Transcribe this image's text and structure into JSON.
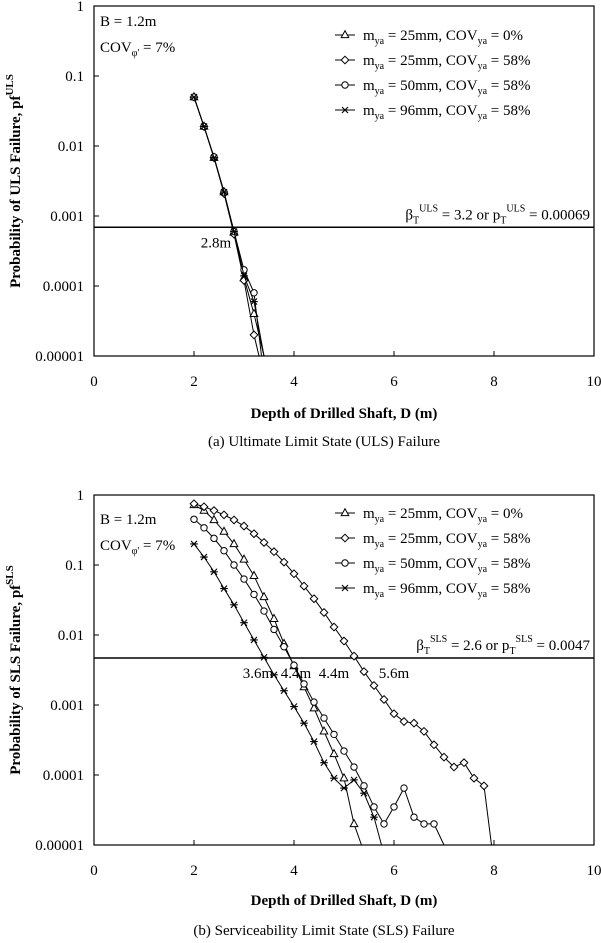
{
  "chart_data": [
    {
      "type": "line",
      "panel_label": "(a) Ultimate Limit State (ULS) Failure",
      "xlabel": "Depth of Drilled Shaft, D (m)",
      "ylabel": "Probability of ULS Failure, pf",
      "ylabel_sup": "ULS",
      "xlim": [
        0,
        10
      ],
      "ylim": [
        1e-05,
        1
      ],
      "yscale": "log",
      "x_ticks": [
        "0",
        "2",
        "4",
        "6",
        "8",
        "10"
      ],
      "y_ticks": [
        "1",
        "0.1",
        "0.01",
        "0.001",
        "0.0001",
        "0.00001"
      ],
      "annotations": {
        "b_text": "B = 1.2m",
        "cov_phi_main": "COV",
        "cov_phi_sub": "φ'",
        "cov_phi_value": " = 7%",
        "target_beta": "β",
        "target_beta_sub": "T",
        "target_beta_sup": "ULS",
        "target_mid": " = 3.2 or p",
        "target_p_sub": "T",
        "target_p_sup": "ULS",
        "target_end": " = 0.00069",
        "threshold_value": 0.00069,
        "depth_labels": [
          {
            "text": "2.8m",
            "depth": 2.8
          }
        ]
      },
      "series": [
        {
          "name_parts": [
            "m",
            "ya",
            " = 25mm, COV",
            "ya",
            " = 0%"
          ],
          "marker": "triangle",
          "x": [
            2.0,
            2.2,
            2.4,
            2.6,
            2.8,
            3.0,
            3.2,
            3.4
          ],
          "y": [
            0.05,
            0.019,
            0.0068,
            0.0022,
            0.00058,
            0.00013,
            4e-05,
            1e-05
          ]
        },
        {
          "name_parts": [
            "m",
            "ya",
            " = 25mm, COV",
            "ya",
            " = 58%"
          ],
          "marker": "diamond",
          "x": [
            2.0,
            2.2,
            2.4,
            2.6,
            2.8,
            3.0,
            3.2,
            3.3
          ],
          "y": [
            0.05,
            0.019,
            0.0068,
            0.0021,
            0.00055,
            0.00012,
            2e-05,
            1e-05
          ]
        },
        {
          "name_parts": [
            "m",
            "ya",
            " = 50mm, COV",
            "ya",
            " = 58%"
          ],
          "marker": "circle",
          "x": [
            2.0,
            2.2,
            2.4,
            2.6,
            2.8,
            3.0,
            3.2,
            3.35
          ],
          "y": [
            0.05,
            0.019,
            0.007,
            0.0022,
            0.0006,
            0.00017,
            8e-05,
            1e-05
          ]
        },
        {
          "name_parts": [
            "m",
            "ya",
            " = 96mm, COV",
            "ya",
            " = 58%"
          ],
          "marker": "star",
          "x": [
            2.0,
            2.2,
            2.4,
            2.6,
            2.8,
            3.0,
            3.2,
            3.4
          ],
          "y": [
            0.05,
            0.019,
            0.0068,
            0.0022,
            0.0006,
            0.00014,
            6e-05,
            1e-05
          ]
        }
      ]
    },
    {
      "type": "line",
      "panel_label": "(b) Serviceability Limit State (SLS) Failure",
      "xlabel": "Depth of Drilled Shaft, D (m)",
      "ylabel": "Probability of SLS Failure, pf",
      "ylabel_sup": "SLS",
      "xlim": [
        0,
        10
      ],
      "ylim": [
        1e-05,
        1
      ],
      "yscale": "log",
      "x_ticks": [
        "0",
        "2",
        "4",
        "6",
        "8",
        "10"
      ],
      "y_ticks": [
        "1",
        "0.1",
        "0.01",
        "0.001",
        "0.0001",
        "0.00001"
      ],
      "annotations": {
        "b_text": "B = 1.2m",
        "cov_phi_main": "COV",
        "cov_phi_sub": "φ'",
        "cov_phi_value": " = 7%",
        "target_beta": "β",
        "target_beta_sub": "T",
        "target_beta_sup": "SLS",
        "target_mid": " = 2.6 or p",
        "target_p_sub": "T",
        "target_p_sup": "SLS",
        "target_end": " = 0.0047",
        "threshold_value": 0.0047,
        "depth_labels": [
          {
            "text": "3.6m",
            "depth": 3.6
          },
          {
            "text": "4.4m",
            "depth": 4.4
          },
          {
            "text": "4.4m",
            "depth": 4.4
          },
          {
            "text": "5.6m",
            "depth": 5.6
          }
        ]
      },
      "series": [
        {
          "name_parts": [
            "m",
            "ya",
            " = 25mm, COV",
            "ya",
            " = 0%"
          ],
          "marker": "triangle",
          "x": [
            2.0,
            2.2,
            2.4,
            2.6,
            2.8,
            3.0,
            3.2,
            3.4,
            3.6,
            3.8,
            4.0,
            4.2,
            4.4,
            4.6,
            4.8,
            5.0,
            5.2,
            5.35
          ],
          "y": [
            0.72,
            0.6,
            0.44,
            0.3,
            0.2,
            0.12,
            0.07,
            0.035,
            0.017,
            0.0075,
            0.0036,
            0.0018,
            0.0009,
            0.00042,
            0.0002,
            9e-05,
            2e-05,
            1e-05
          ]
        },
        {
          "name_parts": [
            "m",
            "ya",
            " = 25mm, COV",
            "ya",
            " = 58%"
          ],
          "marker": "diamond",
          "x": [
            2.0,
            2.2,
            2.4,
            2.6,
            2.8,
            3.0,
            3.2,
            3.4,
            3.6,
            3.8,
            4.0,
            4.2,
            4.4,
            4.6,
            4.8,
            5.0,
            5.2,
            5.4,
            5.6,
            5.8,
            6.0,
            6.2,
            6.4,
            6.6,
            6.8,
            7.0,
            7.2,
            7.4,
            7.6,
            7.8,
            7.95
          ],
          "y": [
            0.75,
            0.68,
            0.6,
            0.52,
            0.44,
            0.36,
            0.28,
            0.21,
            0.155,
            0.11,
            0.075,
            0.05,
            0.033,
            0.021,
            0.013,
            0.0082,
            0.005,
            0.003,
            0.0019,
            0.0012,
            0.00075,
            0.00058,
            0.00055,
            0.00042,
            0.00027,
            0.00018,
            0.00013,
            0.00015,
            9e-05,
            7e-05,
            1e-05
          ]
        },
        {
          "name_parts": [
            "m",
            "ya",
            " = 50mm, COV",
            "ya",
            " = 58%"
          ],
          "marker": "circle",
          "x": [
            2.0,
            2.2,
            2.4,
            2.6,
            2.8,
            3.0,
            3.2,
            3.4,
            3.6,
            3.8,
            4.0,
            4.2,
            4.4,
            4.6,
            4.8,
            5.0,
            5.2,
            5.4,
            5.6,
            5.8,
            6.0,
            6.2,
            6.4,
            6.6,
            6.8,
            7.0
          ],
          "y": [
            0.45,
            0.34,
            0.24,
            0.16,
            0.1,
            0.063,
            0.038,
            0.022,
            0.012,
            0.0068,
            0.0037,
            0.002,
            0.0011,
            0.00065,
            0.00038,
            0.00022,
            0.00013,
            7e-05,
            3.5e-05,
            2e-05,
            3.5e-05,
            6.5e-05,
            2.5e-05,
            2e-05,
            2e-05,
            1e-05
          ]
        },
        {
          "name_parts": [
            "m",
            "ya",
            " = 96mm, COV",
            "ya",
            " = 58%"
          ],
          "marker": "star",
          "x": [
            2.0,
            2.2,
            2.4,
            2.6,
            2.8,
            3.0,
            3.2,
            3.4,
            3.6,
            3.8,
            4.0,
            4.2,
            4.4,
            4.6,
            4.8,
            5.0,
            5.2,
            5.4,
            5.6,
            5.75
          ],
          "y": [
            0.2,
            0.13,
            0.08,
            0.046,
            0.027,
            0.015,
            0.0085,
            0.0048,
            0.0027,
            0.0016,
            0.00095,
            0.00055,
            0.0003,
            0.00015,
            9e-05,
            6.5e-05,
            8.5e-05,
            5.5e-05,
            2.5e-05,
            1e-05
          ]
        }
      ]
    }
  ]
}
